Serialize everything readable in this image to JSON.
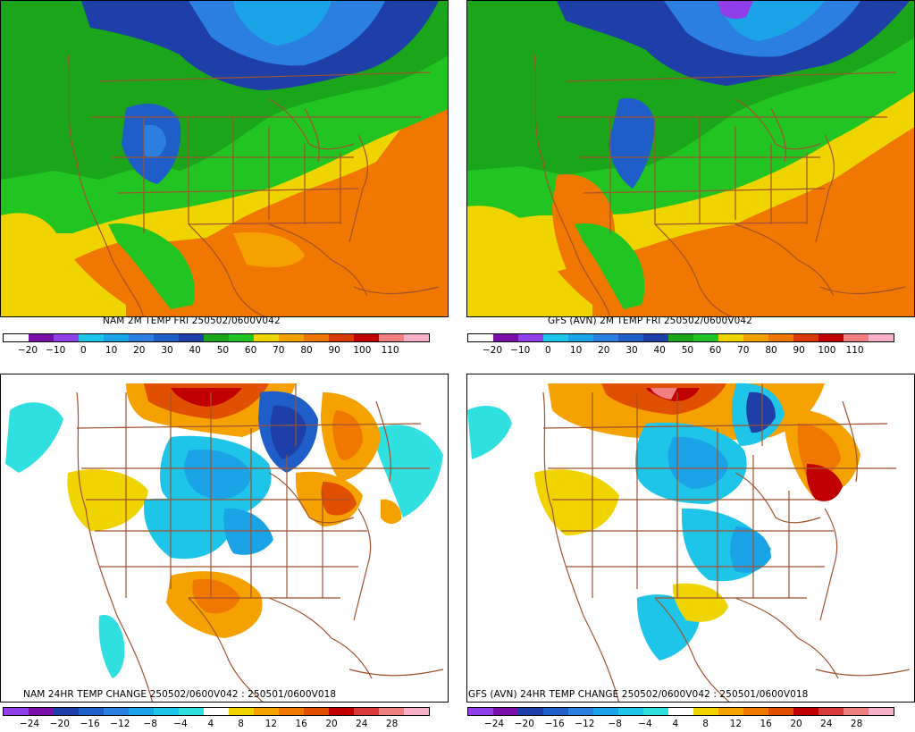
{
  "panels": [
    {
      "id": "nam-temp",
      "title": "NAM 2M TEMP  FRI 250502/0600V042",
      "colorbar": {
        "colors": [
          "#ffffff",
          "#7a0fa8",
          "#8f3ee8",
          "#1fc5e8",
          "#1ba3e8",
          "#2a7fe0",
          "#1f5ec8",
          "#1f3fa8",
          "#1aa51a",
          "#22c422",
          "#f0d400",
          "#f5a200",
          "#f07800",
          "#d83a00",
          "#c00000",
          "#f08080",
          "#f8b0c8"
        ],
        "labels": [
          "−20",
          "−10",
          "0",
          "10",
          "20",
          "30",
          "40",
          "50",
          "60",
          "70",
          "80",
          "90",
          "100",
          "110"
        ]
      }
    },
    {
      "id": "gfs-temp",
      "title": "GFS (AVN) 2M TEMP  FRI 250502/0600V042",
      "colorbar": {
        "colors": [
          "#ffffff",
          "#7a0fa8",
          "#8f3ee8",
          "#1fc5e8",
          "#1ba3e8",
          "#2a7fe0",
          "#1f5ec8",
          "#1f3fa8",
          "#1aa51a",
          "#22c422",
          "#f0d400",
          "#f5a200",
          "#f07800",
          "#d83a00",
          "#c00000",
          "#f08080",
          "#f8b0c8"
        ],
        "labels": [
          "−20",
          "−10",
          "0",
          "10",
          "20",
          "30",
          "40",
          "50",
          "60",
          "70",
          "80",
          "90",
          "100",
          "110"
        ]
      }
    },
    {
      "id": "nam-change",
      "title": "NAM 24HR TEMP CHANGE 250502/0600V042 : 250501/0600V018",
      "colorbar": {
        "colors": [
          "#8f3ee8",
          "#7a0fa8",
          "#1f3fa8",
          "#1f5ec8",
          "#2a7fe0",
          "#1ba3e8",
          "#1fc5e8",
          "#30e0e0",
          "#ffffff",
          "#f0d400",
          "#f5a200",
          "#f07800",
          "#e05000",
          "#c00000",
          "#d83a3a",
          "#f08080",
          "#f8b0c8"
        ],
        "labels": [
          "−24",
          "−20",
          "−16",
          "−12",
          "−8",
          "−4",
          "4",
          "8",
          "12",
          "16",
          "20",
          "24",
          "28"
        ]
      }
    },
    {
      "id": "gfs-change",
      "title": "GFS (AVN) 24HR TEMP CHANGE 250502/0600V042 : 250501/0600V018",
      "colorbar": {
        "colors": [
          "#8f3ee8",
          "#7a0fa8",
          "#1f3fa8",
          "#1f5ec8",
          "#2a7fe0",
          "#1ba3e8",
          "#1fc5e8",
          "#30e0e0",
          "#ffffff",
          "#f0d400",
          "#f5a200",
          "#f07800",
          "#e05000",
          "#c00000",
          "#d83a3a",
          "#f08080",
          "#f8b0c8"
        ],
        "labels": [
          "−24",
          "−20",
          "−16",
          "−12",
          "−8",
          "−4",
          "4",
          "8",
          "12",
          "16",
          "20",
          "24",
          "28"
        ]
      }
    }
  ],
  "colors": {
    "boundary": "#a0522d"
  }
}
